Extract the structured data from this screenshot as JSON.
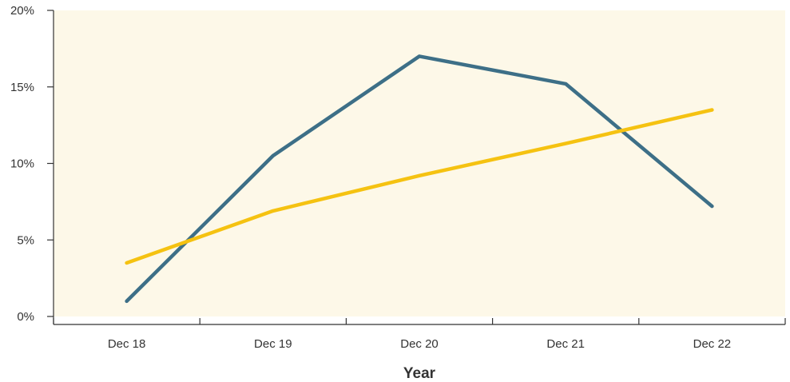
{
  "chart_data": {
    "type": "line",
    "title": "",
    "xlabel": "Year",
    "ylabel": "",
    "categories": [
      "Dec 18",
      "Dec 19",
      "Dec 20",
      "Dec 21",
      "Dec 22"
    ],
    "ylim": [
      0,
      20
    ],
    "y_ticks": [
      "0%",
      "5%",
      "10%",
      "15%",
      "20%"
    ],
    "y_tick_values": [
      0,
      5,
      10,
      15,
      20
    ],
    "grid": false,
    "legend": "none",
    "background_color": "#fdf8e8",
    "series": [
      {
        "color": "#3d6f87",
        "values": [
          1.0,
          10.5,
          17.0,
          15.2,
          7.2
        ]
      },
      {
        "color": "#f5c211",
        "values": [
          3.5,
          6.9,
          9.2,
          11.3,
          13.5
        ]
      }
    ]
  }
}
